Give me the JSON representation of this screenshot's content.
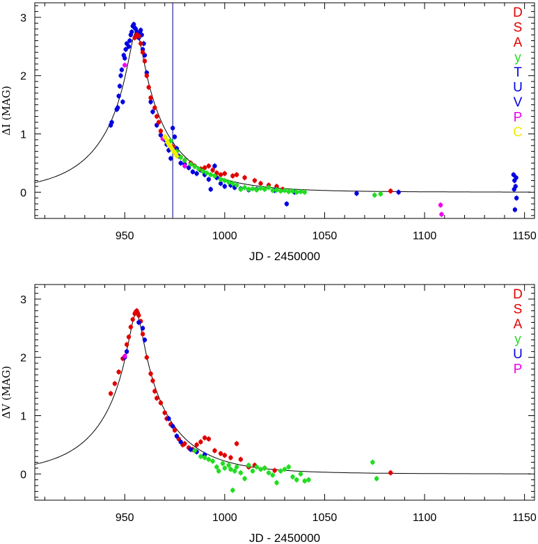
{
  "chart_data": [
    {
      "type": "scatter",
      "xlabel": "JD - 2450000",
      "ylabel": "ΔI (MAG)",
      "xlim": [
        905,
        1155
      ],
      "ylim": [
        -0.45,
        3.25
      ],
      "xticks": [
        950,
        1000,
        1050,
        1100,
        1150
      ],
      "yticks": [
        0,
        1,
        2,
        3
      ],
      "grid": false,
      "legend_position": "top-right",
      "vline_x": 974,
      "model_curve": {
        "t0": 955.7,
        "peak": 2.75,
        "u0": 0.09,
        "tE": 36
      },
      "series": [
        {
          "name": "D",
          "color": "#e00000"
        },
        {
          "name": "S",
          "color": "#e00000"
        },
        {
          "name": "A",
          "color": "#e00000"
        },
        {
          "name": "y",
          "color": "#22dd22"
        },
        {
          "name": "T",
          "color": "#0000e0"
        },
        {
          "name": "U",
          "color": "#0000e0"
        },
        {
          "name": "V",
          "color": "#0000e0"
        },
        {
          "name": "P",
          "color": "#ee00ee"
        },
        {
          "name": "C",
          "color": "#eeee00"
        }
      ],
      "points": {
        "blue": [
          [
            943,
            1.15
          ],
          [
            943.5,
            1.2
          ],
          [
            946,
            1.42
          ],
          [
            946.5,
            1.45
          ],
          [
            947,
            1.65
          ],
          [
            947.5,
            1.82
          ],
          [
            948,
            2.0
          ],
          [
            948.5,
            2.1
          ],
          [
            949,
            1.55
          ],
          [
            949.5,
            2.35
          ],
          [
            950,
            2.3
          ],
          [
            950.5,
            2.45
          ],
          [
            951,
            2.55
          ],
          [
            952,
            2.5
          ],
          [
            952.5,
            2.6
          ],
          [
            953,
            2.7
          ],
          [
            953.5,
            2.75
          ],
          [
            954,
            2.85
          ],
          [
            954.5,
            2.88
          ],
          [
            955,
            2.82
          ],
          [
            955.5,
            2.8
          ],
          [
            956,
            2.75
          ],
          [
            957,
            2.65
          ],
          [
            957.5,
            2.72
          ],
          [
            958,
            2.78
          ],
          [
            958.5,
            2.7
          ],
          [
            959,
            2.45
          ],
          [
            959.5,
            2.55
          ],
          [
            960,
            2.35
          ],
          [
            961,
            2.05
          ],
          [
            963,
            1.55
          ],
          [
            964,
            1.38
          ],
          [
            966,
            1.15
          ],
          [
            968,
            0.98
          ],
          [
            970,
            0.9
          ],
          [
            971,
            0.82
          ],
          [
            972,
            0.72
          ],
          [
            973,
            0.58
          ],
          [
            974,
            1.1
          ],
          [
            975,
            0.95
          ],
          [
            976,
            0.75
          ],
          [
            977,
            0.62
          ],
          [
            978,
            0.5
          ],
          [
            980,
            0.48
          ],
          [
            982,
            0.42
          ],
          [
            984,
            0.35
          ],
          [
            986,
            0.32
          ],
          [
            988,
            0.38
          ],
          [
            990,
            0.3
          ],
          [
            992,
            0.22
          ],
          [
            993,
            0.05
          ],
          [
            995,
            0.45
          ],
          [
            996,
            0.25
          ],
          [
            998,
            0.15
          ],
          [
            1000,
            0.1
          ],
          [
            1003,
            0.12
          ],
          [
            1005,
            0.08
          ],
          [
            1008,
            0.06
          ],
          [
            1012,
            0.04
          ],
          [
            1016,
            0.05
          ],
          [
            1025,
            0.03
          ],
          [
            1031,
            -0.2
          ],
          [
            1035,
            0.0
          ],
          [
            1066,
            -0.02
          ],
          [
            1087,
            0.0
          ],
          [
            1144.5,
            0.3
          ],
          [
            1145,
            0.2
          ],
          [
            1145.5,
            0.1
          ],
          [
            1146,
            -0.1
          ],
          [
            1145.2,
            -0.3
          ],
          [
            1144.8,
            0.05
          ],
          [
            1145.8,
            0.25
          ]
        ],
        "red": [
          [
            955,
            2.65
          ],
          [
            956,
            2.7
          ],
          [
            957,
            2.68
          ],
          [
            958,
            2.55
          ],
          [
            959,
            2.4
          ],
          [
            960,
            2.25
          ],
          [
            961,
            2.0
          ],
          [
            962,
            1.8
          ],
          [
            963,
            1.62
          ],
          [
            965,
            1.45
          ],
          [
            966,
            1.3
          ],
          [
            967,
            1.2
          ],
          [
            968,
            1.05
          ],
          [
            970,
            0.95
          ],
          [
            972,
            0.85
          ],
          [
            974,
            0.78
          ],
          [
            978,
            0.6
          ],
          [
            980,
            0.55
          ],
          [
            983,
            0.5
          ],
          [
            985,
            0.45
          ],
          [
            988,
            0.4
          ],
          [
            990,
            0.42
          ],
          [
            992,
            0.45
          ],
          [
            994,
            0.38
          ],
          [
            996,
            0.33
          ],
          [
            998,
            0.3
          ],
          [
            1000,
            0.32
          ],
          [
            1004,
            0.28
          ],
          [
            1006,
            0.3
          ],
          [
            1010,
            0.25
          ],
          [
            1015,
            0.2
          ],
          [
            1018,
            0.15
          ],
          [
            1022,
            0.12
          ],
          [
            1026,
            0.1
          ],
          [
            1029,
            0.05
          ],
          [
            1083,
            0.02
          ]
        ],
        "green": [
          [
            973,
            0.88
          ],
          [
            976,
            0.7
          ],
          [
            978,
            0.6
          ],
          [
            980,
            0.55
          ],
          [
            983,
            0.48
          ],
          [
            985,
            0.44
          ],
          [
            987,
            0.4
          ],
          [
            989,
            0.36
          ],
          [
            991,
            0.33
          ],
          [
            993,
            0.3
          ],
          [
            995,
            0.28
          ],
          [
            998,
            0.22
          ],
          [
            1000,
            0.2
          ],
          [
            1002,
            0.17
          ],
          [
            1004,
            0.15
          ],
          [
            1006,
            0.12
          ],
          [
            1008,
            0.05
          ],
          [
            1010,
            0.08
          ],
          [
            1012,
            0.05
          ],
          [
            1014,
            0.06
          ],
          [
            1016,
            0.04
          ],
          [
            1018,
            0.07
          ],
          [
            1020,
            0.05
          ],
          [
            1022,
            0.08
          ],
          [
            1024,
            0.03
          ],
          [
            1026,
            0.04
          ],
          [
            1028,
            0.02
          ],
          [
            1030,
            0.03
          ],
          [
            1032,
            0.01
          ],
          [
            1034,
            0.02
          ],
          [
            1036,
            0.0
          ],
          [
            1038,
            0.01
          ],
          [
            1040,
            0.0
          ],
          [
            1075,
            -0.05
          ],
          [
            1078,
            -0.03
          ]
        ],
        "magenta": [
          [
            950,
            2.18
          ],
          [
            969,
            0.92
          ],
          [
            980,
            0.45
          ],
          [
            1108,
            -0.22
          ],
          [
            1108.5,
            -0.38
          ]
        ],
        "yellow": [
          [
            970,
            0.95
          ],
          [
            971,
            0.9
          ],
          [
            971.5,
            0.85
          ],
          [
            972,
            0.82
          ],
          [
            972.5,
            0.8
          ],
          [
            973,
            0.78
          ],
          [
            973.5,
            0.75
          ],
          [
            974,
            0.72
          ],
          [
            974.5,
            0.7
          ],
          [
            975,
            0.68
          ],
          [
            975.5,
            0.65
          ],
          [
            976,
            0.62
          ]
        ]
      }
    },
    {
      "type": "scatter",
      "xlabel": "JD - 2450000",
      "ylabel": "ΔV (MAG)",
      "xlim": [
        905,
        1155
      ],
      "ylim": [
        -0.45,
        3.25
      ],
      "xticks": [
        950,
        1000,
        1050,
        1100,
        1150
      ],
      "yticks": [
        0,
        1,
        2,
        3
      ],
      "grid": false,
      "legend_position": "top-right",
      "model_curve": {
        "t0": 955.7,
        "peak": 2.75,
        "u0": 0.09,
        "tE": 36
      },
      "series": [
        {
          "name": "D",
          "color": "#e00000"
        },
        {
          "name": "S",
          "color": "#e00000"
        },
        {
          "name": "A",
          "color": "#e00000"
        },
        {
          "name": "y",
          "color": "#22dd22"
        },
        {
          "name": "U",
          "color": "#0000e0"
        },
        {
          "name": "P",
          "color": "#ee00ee"
        }
      ],
      "points": {
        "red": [
          [
            943,
            1.38
          ],
          [
            945,
            1.55
          ],
          [
            947,
            1.75
          ],
          [
            949,
            1.98
          ],
          [
            951,
            2.22
          ],
          [
            952,
            2.35
          ],
          [
            953,
            2.52
          ],
          [
            954,
            2.65
          ],
          [
            955,
            2.75
          ],
          [
            955.5,
            2.78
          ],
          [
            956,
            2.8
          ],
          [
            956.5,
            2.76
          ],
          [
            957,
            2.72
          ],
          [
            958,
            2.62
          ],
          [
            959,
            2.4
          ],
          [
            961,
            2.0
          ],
          [
            963,
            1.72
          ],
          [
            964,
            1.6
          ],
          [
            965,
            1.42
          ],
          [
            966,
            1.3
          ],
          [
            968,
            1.22
          ],
          [
            970,
            1.05
          ],
          [
            971,
            0.95
          ],
          [
            973,
            0.85
          ],
          [
            975,
            0.75
          ],
          [
            977,
            0.6
          ],
          [
            979,
            0.5
          ],
          [
            980,
            0.52
          ],
          [
            982,
            0.45
          ],
          [
            984,
            0.42
          ],
          [
            986,
            0.5
          ],
          [
            988,
            0.55
          ],
          [
            990,
            0.62
          ],
          [
            992,
            0.6
          ],
          [
            995,
            0.4
          ],
          [
            998,
            0.35
          ],
          [
            1000,
            0.32
          ],
          [
            1003,
            0.28
          ],
          [
            1006,
            0.52
          ],
          [
            1008,
            0.25
          ],
          [
            1012,
            0.12
          ],
          [
            1015,
            0.15
          ],
          [
            1020,
            0.1
          ],
          [
            1025,
            0.06
          ],
          [
            1083,
            0.02
          ]
        ],
        "blue": [
          [
            950,
            2.0
          ],
          [
            951,
            2.1
          ],
          [
            957,
            2.6
          ],
          [
            959,
            2.5
          ],
          [
            960,
            2.3
          ],
          [
            972,
            0.95
          ],
          [
            974,
            0.82
          ],
          [
            976,
            0.65
          ],
          [
            978,
            0.55
          ],
          [
            983,
            0.42
          ],
          [
            986,
            0.38
          ],
          [
            990,
            0.33
          ]
        ],
        "green": [
          [
            985,
            0.4
          ],
          [
            988,
            0.3
          ],
          [
            990,
            0.28
          ],
          [
            992,
            0.25
          ],
          [
            994,
            0.22
          ],
          [
            996,
            0.12
          ],
          [
            997,
            0.05
          ],
          [
            999,
            0.18
          ],
          [
            1000,
            0.1
          ],
          [
            1002,
            0.15
          ],
          [
            1003,
            0.08
          ],
          [
            1004,
            -0.28
          ],
          [
            1005,
            0.05
          ],
          [
            1006,
            0.12
          ],
          [
            1008,
            0.02
          ],
          [
            1010,
            -0.08
          ],
          [
            1012,
            0.15
          ],
          [
            1014,
            0.05
          ],
          [
            1016,
            0.12
          ],
          [
            1018,
            0.08
          ],
          [
            1020,
            0.1
          ],
          [
            1022,
            0.02
          ],
          [
            1024,
            -0.02
          ],
          [
            1026,
            -0.15
          ],
          [
            1028,
            0.05
          ],
          [
            1030,
            0.08
          ],
          [
            1032,
            0.12
          ],
          [
            1034,
            -0.05
          ],
          [
            1036,
            -0.1
          ],
          [
            1038,
            0.0
          ],
          [
            1040,
            -0.12
          ],
          [
            1042,
            -0.1
          ],
          [
            1074,
            0.2
          ],
          [
            1076,
            -0.08
          ]
        ],
        "magenta": [
          [
            950,
            2.02
          ]
        ]
      }
    }
  ]
}
